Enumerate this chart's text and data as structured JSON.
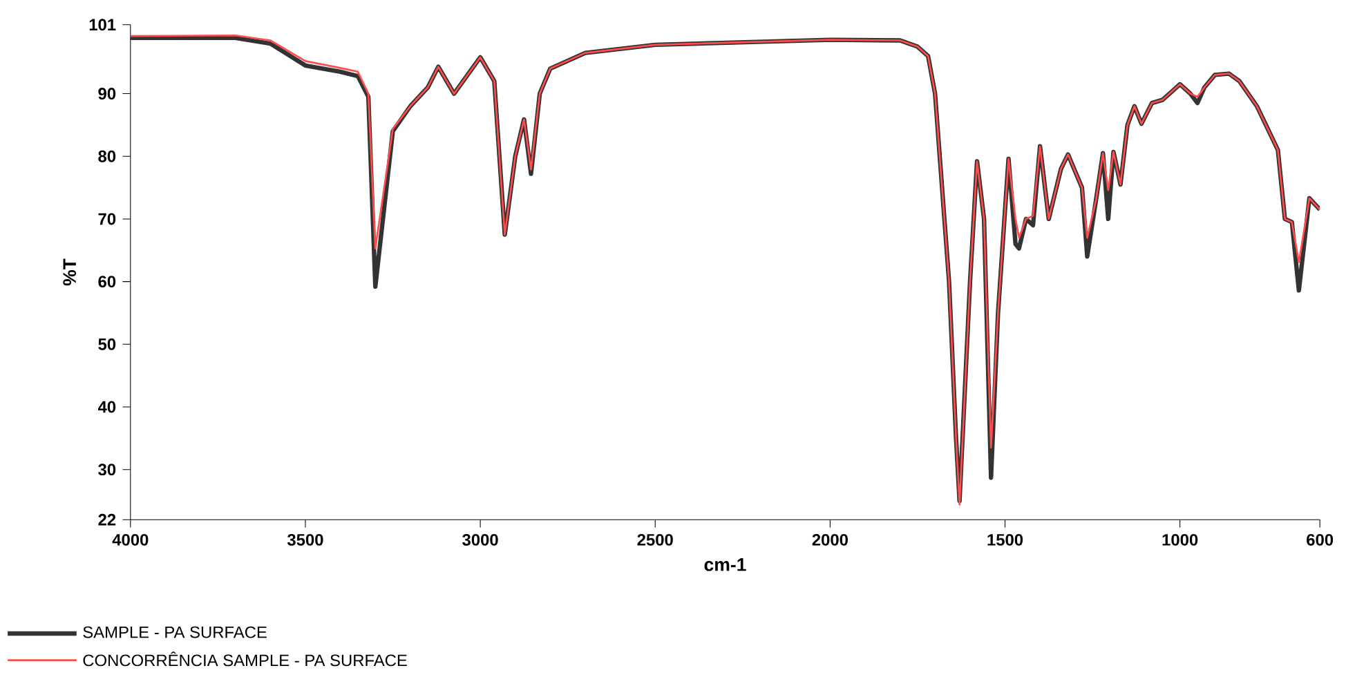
{
  "chart_data": {
    "type": "line",
    "xlabel": "cm-1",
    "ylabel": "%T",
    "xlim": [
      4000,
      600
    ],
    "ylim": [
      22,
      101
    ],
    "xticks": [
      4000,
      3500,
      3000,
      2500,
      2000,
      1500,
      1000,
      600
    ],
    "yticks": [
      22,
      30,
      40,
      50,
      60,
      70,
      80,
      90,
      101
    ],
    "grid": false,
    "legend": "bottom",
    "marker": "none",
    "line_style": "solid",
    "x": [
      4000,
      3700,
      3600,
      3500,
      3400,
      3350,
      3320,
      3300,
      3250,
      3200,
      3150,
      3120,
      3075,
      3000,
      2960,
      2930,
      2900,
      2875,
      2855,
      2830,
      2800,
      2700,
      2500,
      2000,
      1800,
      1750,
      1720,
      1700,
      1660,
      1640,
      1630,
      1600,
      1580,
      1560,
      1540,
      1520,
      1490,
      1470,
      1460,
      1440,
      1420,
      1400,
      1375,
      1340,
      1320,
      1280,
      1265,
      1240,
      1220,
      1205,
      1190,
      1170,
      1150,
      1130,
      1110,
      1080,
      1050,
      1020,
      1000,
      970,
      950,
      930,
      900,
      860,
      830,
      780,
      720,
      700,
      680,
      660,
      630,
      600
    ],
    "series": [
      {
        "name": "SAMPLE - PA SURFACE",
        "color": "#333333",
        "values": [
          98.9,
          98.9,
          98,
          94.5,
          93.5,
          92.8,
          89.5,
          59.2,
          84,
          88,
          91,
          94.3,
          90,
          95.8,
          92,
          67.5,
          80,
          85.9,
          77.2,
          90,
          94,
          96.5,
          97.8,
          98.6,
          98.5,
          97.5,
          96,
          90,
          60,
          35,
          25,
          60,
          79.2,
          70,
          28.7,
          55,
          79.6,
          66,
          65.3,
          70,
          69,
          81.6,
          70,
          78,
          80.3,
          75,
          64,
          73,
          80.5,
          70,
          80.7,
          75.5,
          85,
          88,
          85.2,
          88.5,
          89,
          90.5,
          91.5,
          90,
          88.5,
          91,
          93,
          93.2,
          92,
          88,
          81,
          70,
          69.5,
          58.6,
          73.3,
          71.5
        ]
      },
      {
        "name": "CONCORRÊNCIA SAMPLE - PA SURFACE",
        "color": "#ff4d4d",
        "values": [
          99.2,
          99.3,
          98.5,
          95.2,
          94.1,
          93.5,
          90,
          65.3,
          84.4,
          88,
          91,
          94.3,
          90,
          95.8,
          92,
          67.5,
          80,
          85.9,
          77.9,
          90,
          94,
          96.5,
          97.8,
          98.6,
          98.5,
          97.5,
          96,
          90,
          60,
          35,
          24.4,
          60,
          79.2,
          70,
          33.5,
          55,
          79.6,
          70,
          67,
          70,
          70.5,
          81.6,
          70,
          78,
          80.3,
          75,
          67,
          73,
          80.5,
          74.6,
          80.7,
          75.5,
          85,
          88,
          85.2,
          88.5,
          89,
          90.5,
          91.5,
          90,
          89.5,
          91,
          93,
          93.2,
          92,
          88,
          81,
          70,
          69.5,
          63.1,
          73.3,
          71.5
        ]
      }
    ]
  }
}
